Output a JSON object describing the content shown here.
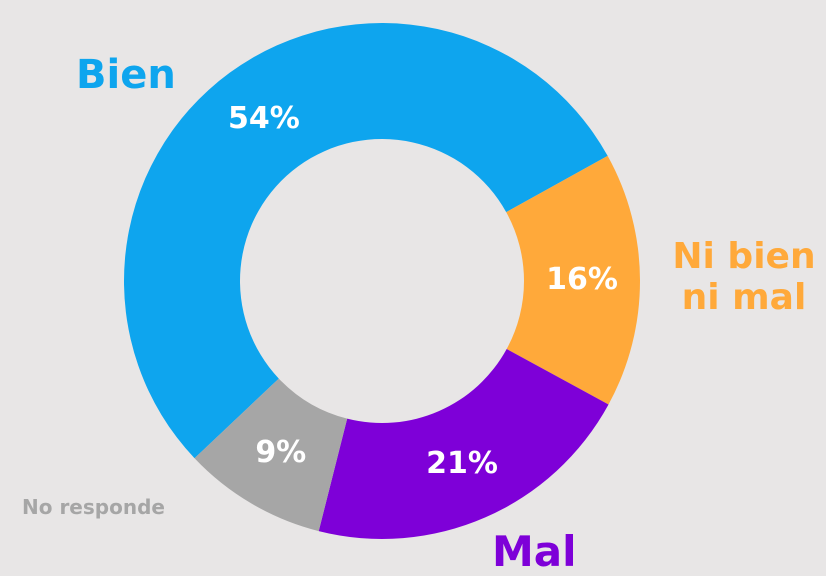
{
  "chart_data": {
    "type": "donut",
    "categories": [
      "Bien",
      "Ni bien ni mal",
      "Mal",
      "No responde"
    ],
    "values": [
      54,
      16,
      21,
      9
    ],
    "value_labels": [
      "54%",
      "16%",
      "21%",
      "9%"
    ],
    "colors": [
      "#0ea5ee",
      "#ffa93a",
      "#7e00d8",
      "#a6a6a6"
    ]
  }
}
